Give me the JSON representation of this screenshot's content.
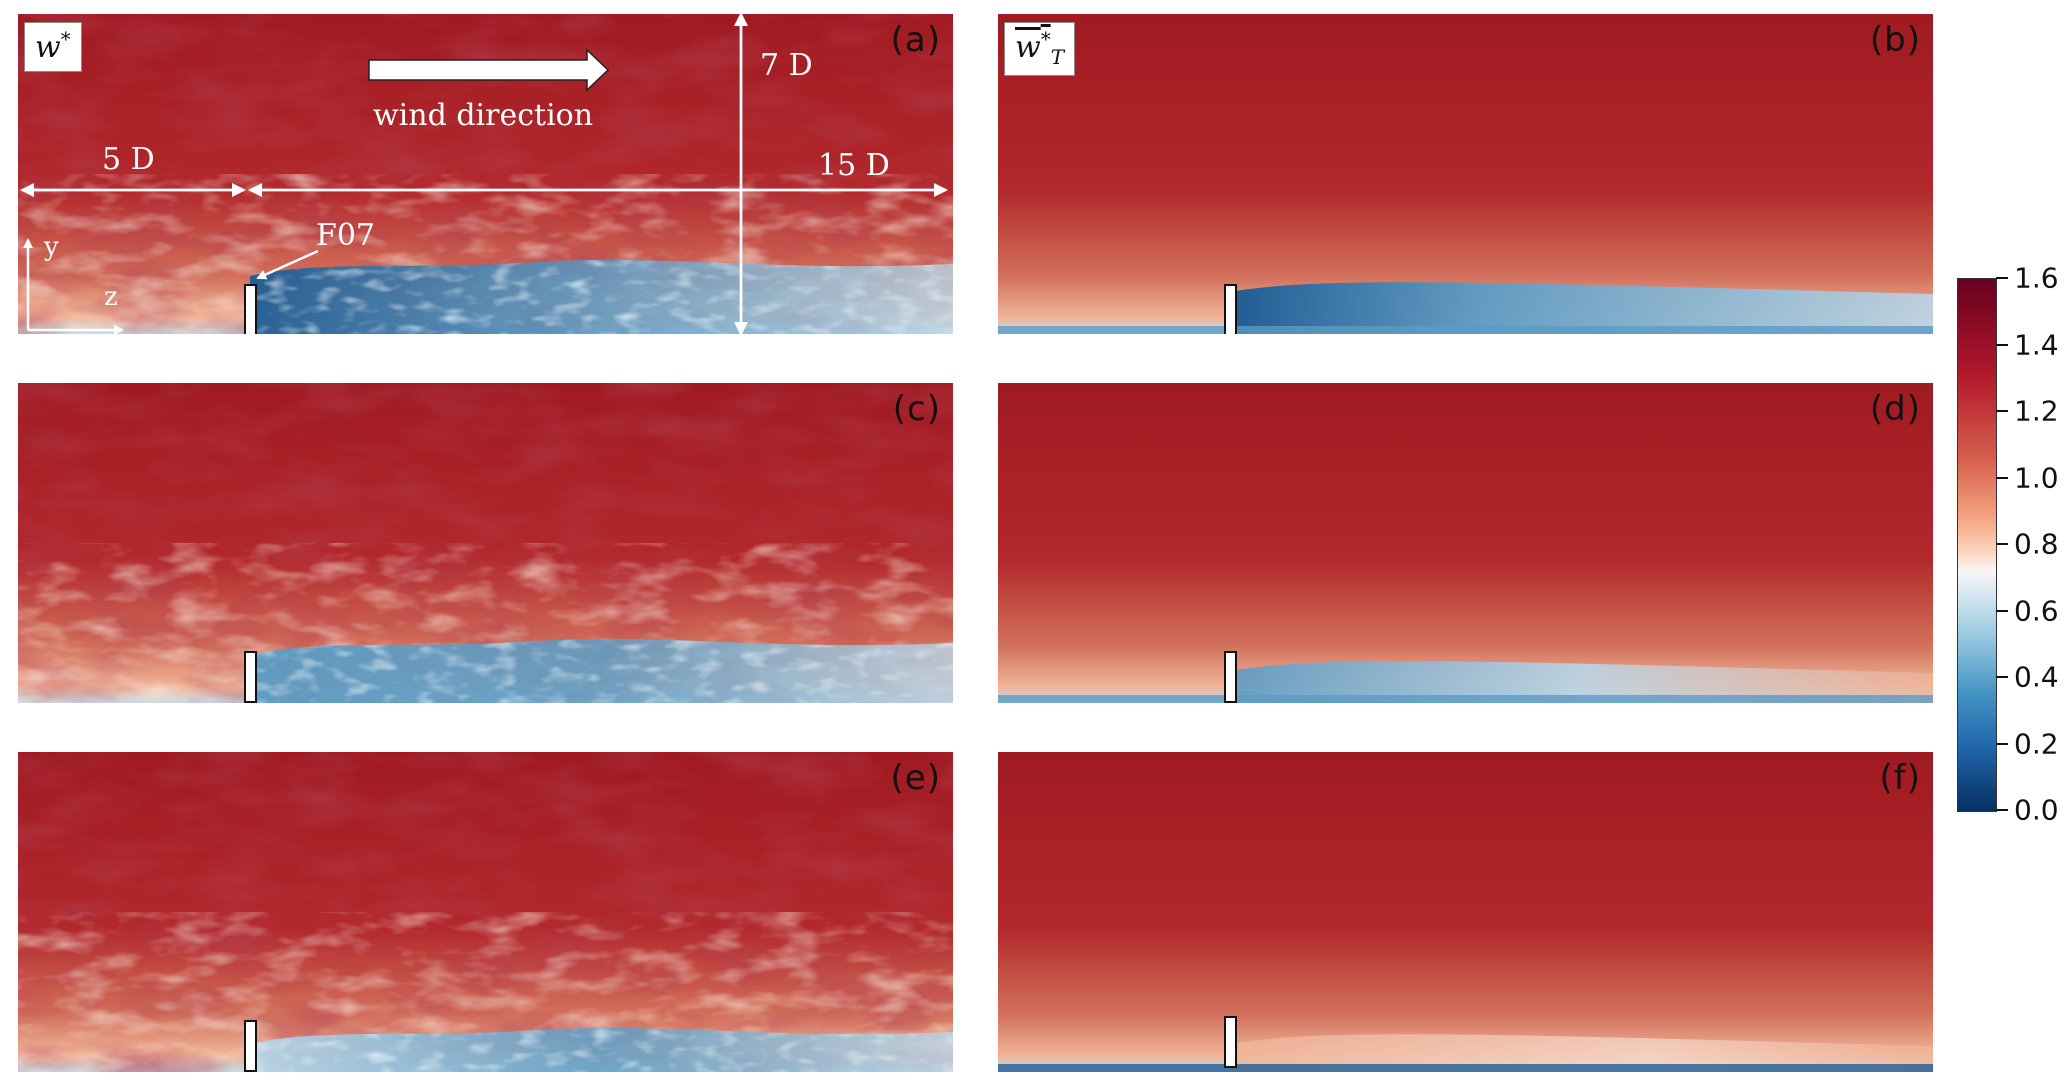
{
  "panels": [
    {
      "id": "a",
      "label": "(a)",
      "kind": "instant",
      "variant": 0,
      "title_text": "w",
      "title_sup": "*"
    },
    {
      "id": "b",
      "label": "(b)",
      "kind": "mean",
      "variant": 0,
      "title_text": "w",
      "title_sup": "*",
      "title_sub": "T"
    },
    {
      "id": "c",
      "label": "(c)",
      "kind": "instant",
      "variant": 1
    },
    {
      "id": "d",
      "label": "(d)",
      "kind": "mean",
      "variant": 1
    },
    {
      "id": "e",
      "label": "(e)",
      "kind": "instant",
      "variant": 2
    },
    {
      "id": "f",
      "label": "(f)",
      "kind": "mean",
      "variant": 2
    }
  ],
  "annotations": {
    "wind_direction": "wind direction",
    "upstream_length": "5 D",
    "downstream_length": "15 D",
    "height": "7 D",
    "turbine_name": "F07",
    "axis_y": "y",
    "axis_z": "z"
  },
  "colorbar": {
    "ticks": [
      "1.6",
      "1.4",
      "1.2",
      "1.0",
      "0.8",
      "0.6",
      "0.4",
      "0.2",
      "0.0"
    ],
    "min": 0.0,
    "max": 1.6,
    "colormap": "RdBu_r",
    "colors": [
      "#67001f",
      "#b2182b",
      "#d6604d",
      "#f4a582",
      "#fddbc7",
      "#f7f7f7",
      "#d1e5f0",
      "#92c5de",
      "#4393c3",
      "#2166ac",
      "#053061"
    ]
  },
  "field_colors": {
    "freestream": "#b2282b",
    "upper": "#a01a22",
    "near_ground": "#f0b59a",
    "wake_deep": "#1f5c93",
    "wake_mid": "#5b9bc4",
    "wake_light": "#b9d5e6"
  }
}
